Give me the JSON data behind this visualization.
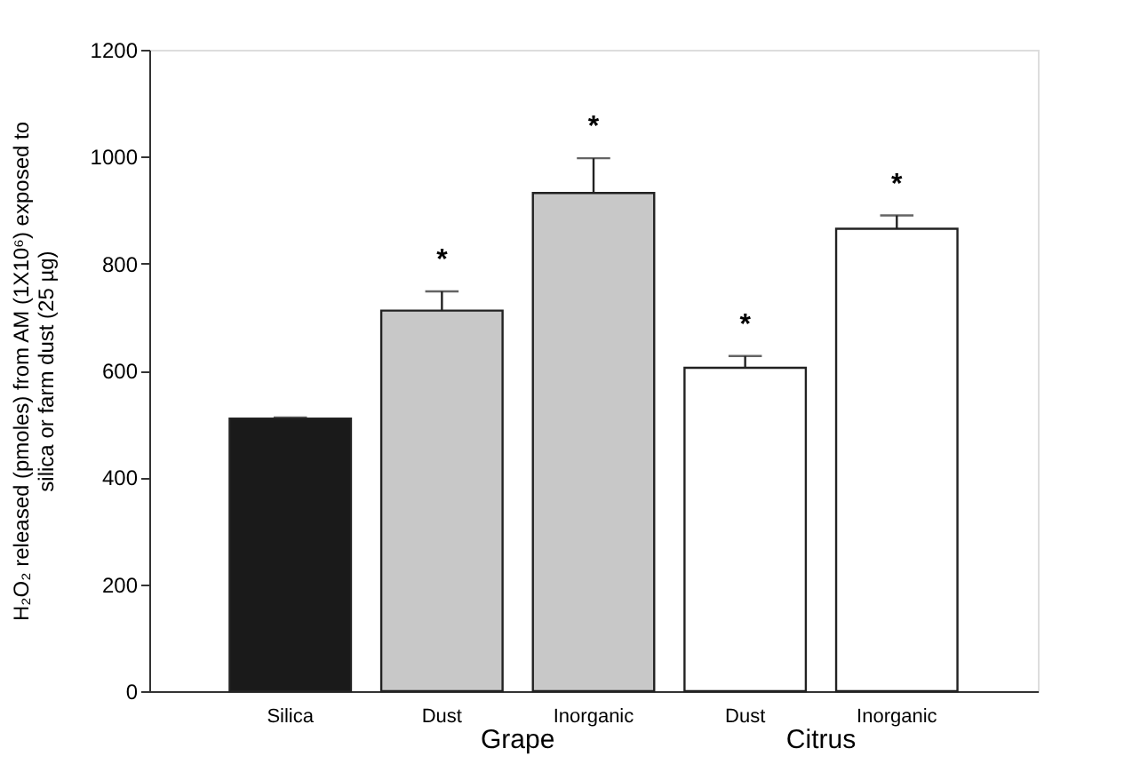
{
  "chart_data": {
    "type": "bar",
    "ylabel": "H₂O₂ released (pmoles) from AM (1X10⁶) exposed to silica or farm dust (25 µg)",
    "categories": [
      "Silica",
      "Dust",
      "Inorganic",
      "Dust",
      "Inorganic"
    ],
    "values": [
      510,
      712,
      932,
      605,
      865
    ],
    "errors": [
      2,
      36,
      65,
      22,
      25
    ],
    "colors": [
      "#1a1a1a",
      "#c8c8c8",
      "#c8c8c8",
      "#ffffff",
      "#ffffff"
    ],
    "value_labels": [
      null,
      "*",
      "*",
      "*",
      "*"
    ],
    "annotations": [
      "Grape",
      "Citrus"
    ],
    "ylim": [
      0,
      1200
    ],
    "yticks": [
      0,
      200,
      400,
      600,
      800,
      1000,
      1200
    ],
    "grid": false
  }
}
